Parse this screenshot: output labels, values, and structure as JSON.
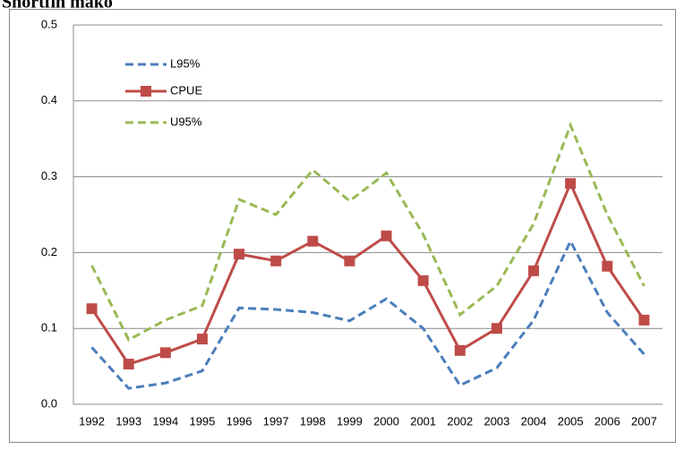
{
  "chart_data": {
    "type": "line",
    "title": "Shortfin mako",
    "categories": [
      "1992",
      "1993",
      "1994",
      "1995",
      "1996",
      "1997",
      "1998",
      "1999",
      "2000",
      "2001",
      "2002",
      "2003",
      "2004",
      "2005",
      "2006",
      "2007"
    ],
    "series": [
      {
        "name": "L95%",
        "color": "#4a7ebb",
        "dashed": true,
        "values": [
          0.075,
          0.021,
          0.028,
          0.044,
          0.127,
          0.125,
          0.121,
          0.11,
          0.139,
          0.1,
          0.025,
          0.048,
          0.111,
          0.215,
          0.121,
          0.066
        ]
      },
      {
        "name": "CPUE",
        "color": "#be4b48",
        "marker": "square",
        "values": [
          0.126,
          0.053,
          0.068,
          0.086,
          0.198,
          0.189,
          0.215,
          0.189,
          0.222,
          0.163,
          0.071,
          0.1,
          0.176,
          0.291,
          0.182,
          0.111
        ]
      },
      {
        "name": "U95%",
        "color": "#98b954",
        "dashed": true,
        "values": [
          0.183,
          0.085,
          0.111,
          0.13,
          0.27,
          0.25,
          0.309,
          0.268,
          0.305,
          0.224,
          0.118,
          0.156,
          0.238,
          0.368,
          0.25,
          0.156
        ]
      }
    ],
    "ylim": [
      0,
      0.5
    ],
    "yticks": [
      {
        "value": 0,
        "label": "0.0"
      },
      0.1,
      0.2,
      0.3,
      0.4,
      0.5
    ],
    "grid": true,
    "legend": "top-left"
  }
}
